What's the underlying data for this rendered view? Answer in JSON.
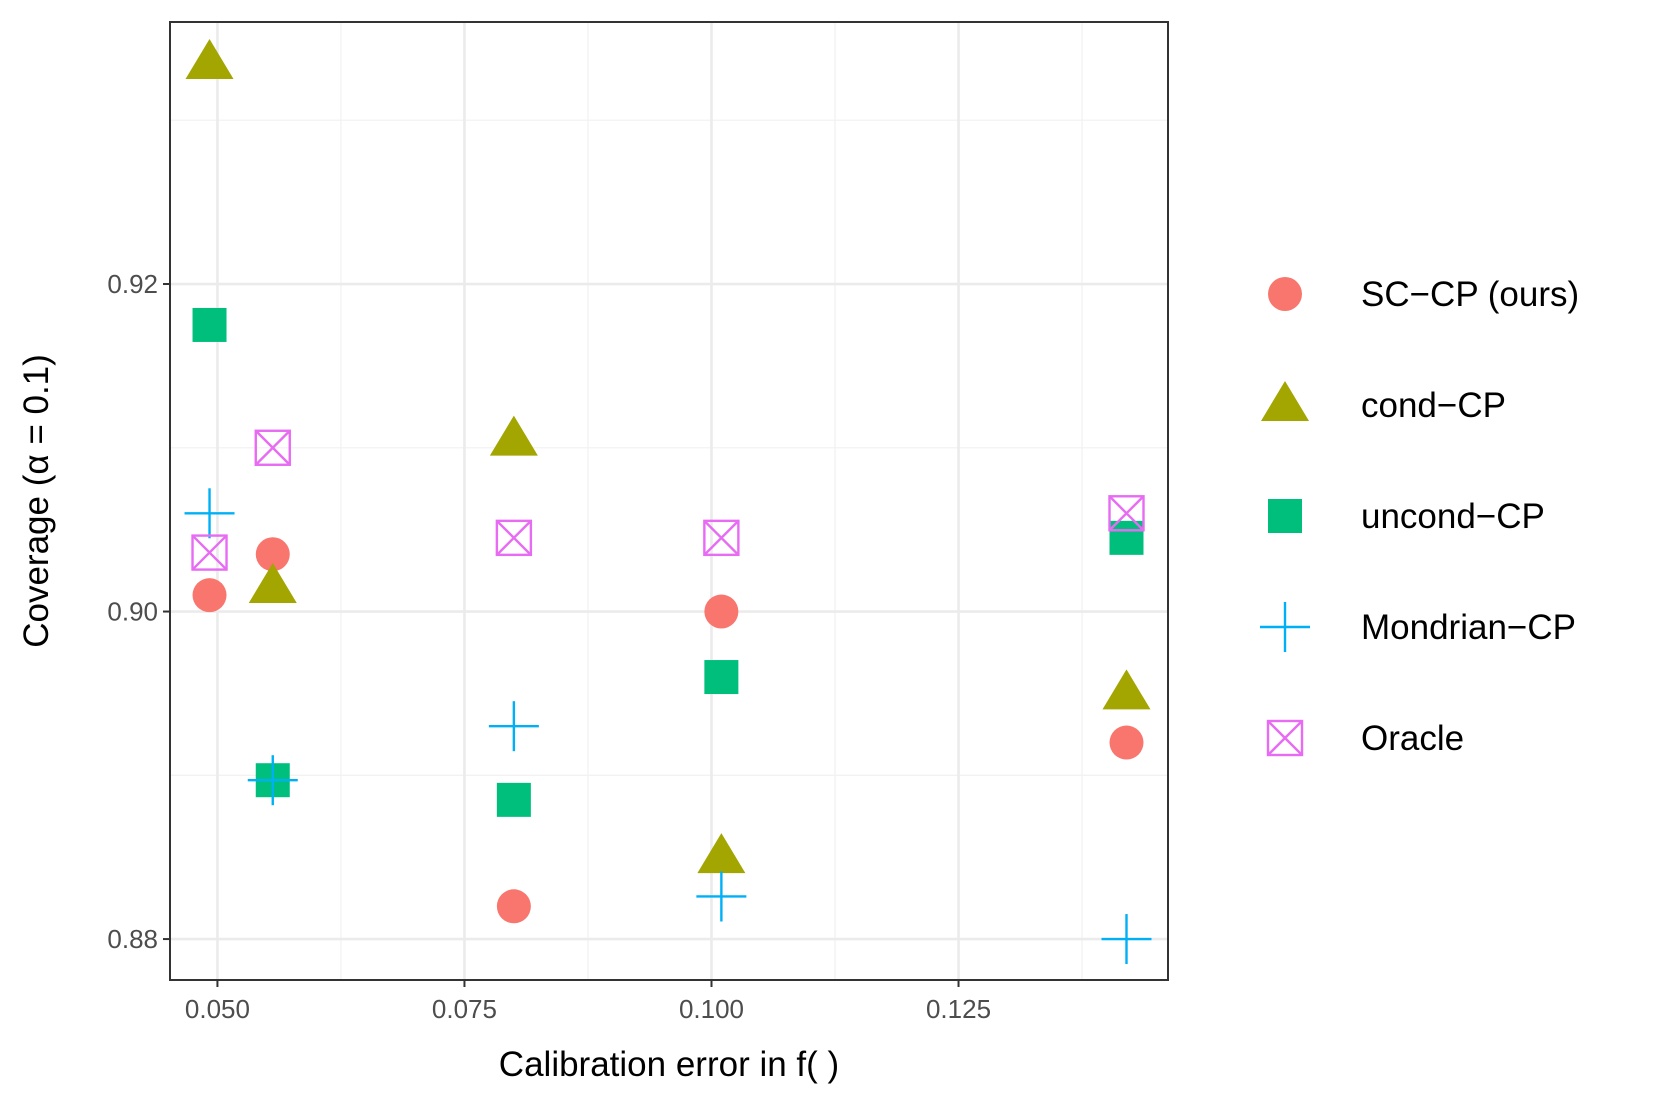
{
  "chart_data": {
    "type": "scatter",
    "title": "",
    "xlabel": "Calibration error in f( )",
    "ylabel": "Coverage (α = 0.1)",
    "xlim": [
      0.0452,
      0.1462
    ],
    "ylim": [
      0.8775,
      0.936
    ],
    "xticks": [
      0.05,
      0.075,
      0.1,
      0.125
    ],
    "xtick_labels": [
      "0.050",
      "0.075",
      "0.100",
      "0.125"
    ],
    "yticks": [
      0.88,
      0.9,
      0.92
    ],
    "ytick_labels": [
      "0.88",
      "0.90",
      "0.92"
    ],
    "grid": true,
    "legend_position": "right",
    "series": [
      {
        "name": "SC−CP (ours)",
        "marker": "circle",
        "color": "#F8766D",
        "points": [
          [
            0.0492,
            0.901
          ],
          [
            0.0556,
            0.9035
          ],
          [
            0.08,
            0.882
          ],
          [
            0.101,
            0.9
          ],
          [
            0.142,
            0.892
          ]
        ]
      },
      {
        "name": "cond−CP",
        "marker": "triangle",
        "color": "#A3A500",
        "points": [
          [
            0.0492,
            0.9335
          ],
          [
            0.0556,
            0.9015
          ],
          [
            0.08,
            0.9105
          ],
          [
            0.101,
            0.885
          ],
          [
            0.142,
            0.895
          ]
        ]
      },
      {
        "name": "uncond−CP",
        "marker": "square",
        "color": "#00BF7D",
        "points": [
          [
            0.0492,
            0.9175
          ],
          [
            0.0556,
            0.8897
          ],
          [
            0.08,
            0.8885
          ],
          [
            0.101,
            0.896
          ],
          [
            0.142,
            0.9045
          ]
        ]
      },
      {
        "name": "Mondrian−CP",
        "marker": "plus",
        "color": "#00B0F6",
        "points": [
          [
            0.0492,
            0.906
          ],
          [
            0.0556,
            0.8897
          ],
          [
            0.08,
            0.893
          ],
          [
            0.101,
            0.8826
          ],
          [
            0.142,
            0.88
          ]
        ]
      },
      {
        "name": "Oracle",
        "marker": "boxcross",
        "color": "#E76BF3",
        "points": [
          [
            0.0492,
            0.9036
          ],
          [
            0.0556,
            0.91
          ],
          [
            0.08,
            0.9045
          ],
          [
            0.101,
            0.9045
          ],
          [
            0.142,
            0.906
          ]
        ]
      }
    ]
  }
}
